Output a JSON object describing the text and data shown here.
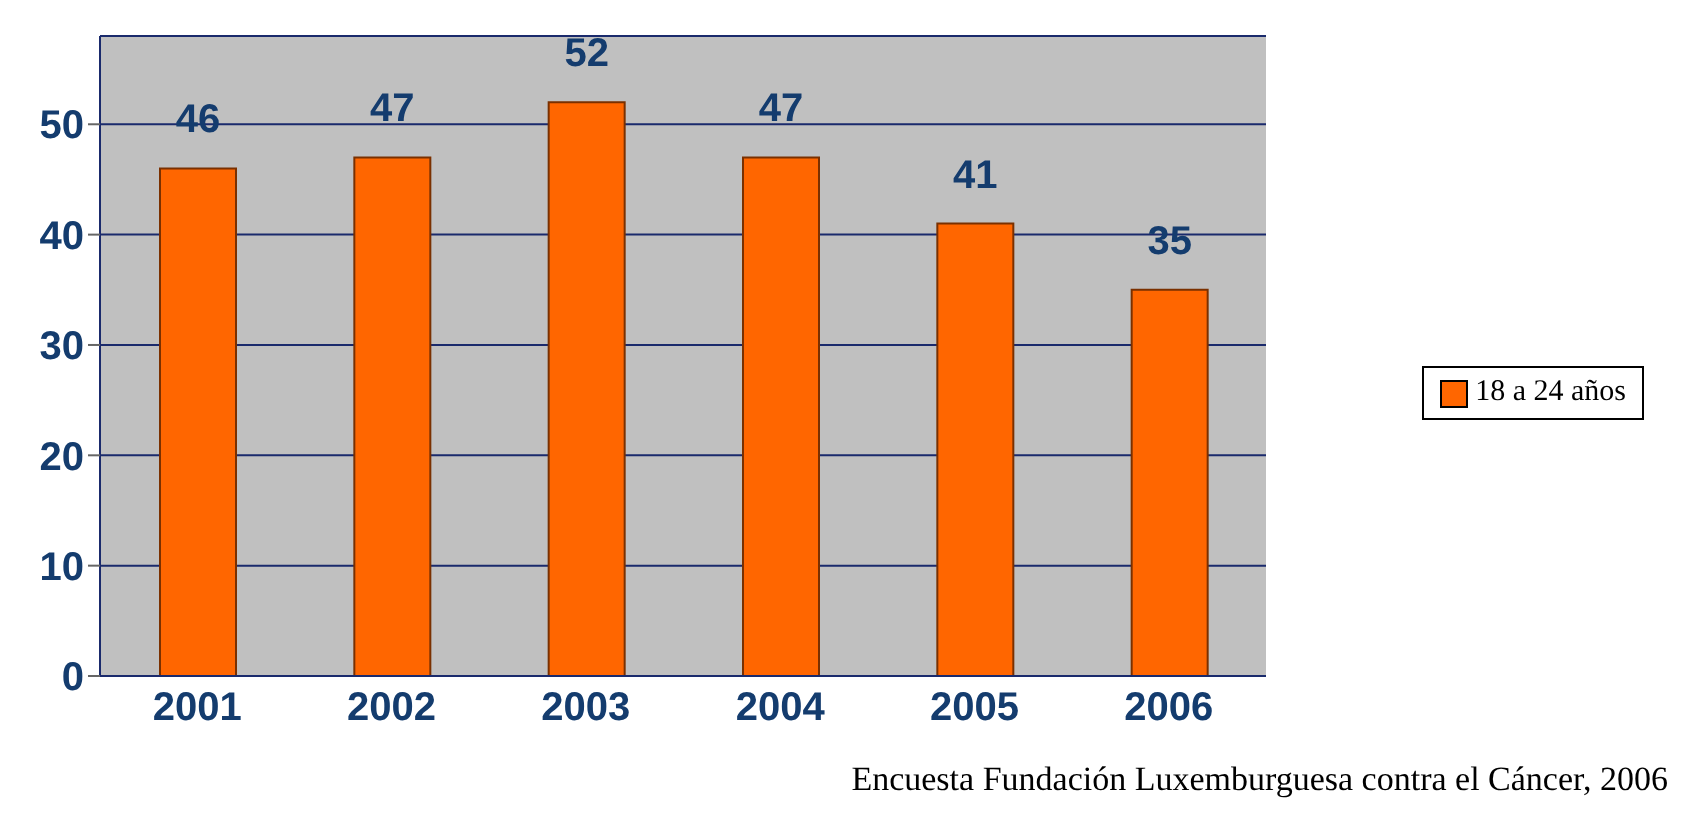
{
  "chart_data": {
    "type": "bar",
    "categories": [
      "2001",
      "2002",
      "2003",
      "2004",
      "2005",
      "2006"
    ],
    "series": [
      {
        "name": "18 a 24 años",
        "color": "#ff6600",
        "values": [
          46,
          47,
          52,
          47,
          41,
          35
        ]
      }
    ],
    "ylim": [
      0,
      58
    ],
    "yticks": [
      0,
      10,
      20,
      30,
      40,
      50
    ],
    "grid": "y",
    "legend": "right",
    "data_labels": true,
    "annotations": [
      "Encuesta Fundación Luxemburguesa contra el Cáncer, 2006"
    ]
  }
}
